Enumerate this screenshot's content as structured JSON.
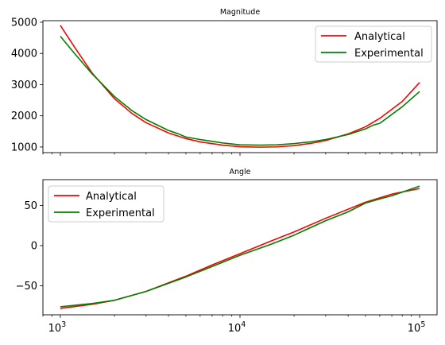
{
  "chart_data": [
    {
      "type": "line",
      "title": "Magnitude",
      "xscale": "log",
      "xlim": [
        800,
        125000
      ],
      "ylim": [
        820,
        5050
      ],
      "yticks": [
        1000,
        2000,
        3000,
        4000,
        5000
      ],
      "legend": {
        "position": "top-right"
      },
      "series": [
        {
          "name": "Analytical",
          "color": "#ff0000",
          "x": [
            1000,
            1200,
            1500,
            2000,
            2500,
            3000,
            4000,
            5000,
            6000,
            8000,
            10000,
            13000,
            16000,
            20000,
            25000,
            30000,
            40000,
            50000,
            60000,
            80000,
            100000
          ],
          "y": [
            4900,
            4200,
            3380,
            2550,
            2080,
            1780,
            1450,
            1270,
            1165,
            1060,
            1010,
            995,
            1005,
            1045,
            1120,
            1210,
            1420,
            1650,
            1920,
            2460,
            3070
          ]
        },
        {
          "name": "Experimental",
          "color": "#008000",
          "x": [
            1000,
            1200,
            1500,
            2000,
            2500,
            3000,
            4000,
            4500,
            5000,
            6000,
            8000,
            10000,
            13000,
            16000,
            20000,
            25000,
            30000,
            40000,
            50000,
            55000,
            60000,
            80000,
            100000
          ],
          "y": [
            4550,
            4000,
            3350,
            2620,
            2170,
            1880,
            1530,
            1430,
            1320,
            1240,
            1130,
            1070,
            1060,
            1070,
            1110,
            1170,
            1240,
            1400,
            1580,
            1700,
            1760,
            2290,
            2780
          ]
        }
      ]
    },
    {
      "type": "line",
      "title": "Angle",
      "xscale": "log",
      "xlim": [
        800,
        125000
      ],
      "ylim": [
        -86,
        82
      ],
      "xticks": [
        {
          "value": 1000,
          "base": "10",
          "exp": "3"
        },
        {
          "value": 10000,
          "base": "10",
          "exp": "4"
        },
        {
          "value": 100000,
          "base": "10",
          "exp": "5"
        }
      ],
      "yticks": [
        -50,
        0,
        50
      ],
      "legend": {
        "position": "top-left"
      },
      "series": [
        {
          "name": "Analytical",
          "color": "#ff0000",
          "x": [
            1000,
            1500,
            2000,
            3000,
            5000,
            7000,
            10000,
            15000,
            20000,
            30000,
            50000,
            70000,
            100000
          ],
          "y": [
            -78,
            -73,
            -68,
            -57,
            -38,
            -24,
            -10,
            6,
            17,
            34,
            54,
            64,
            71
          ]
        },
        {
          "name": "Experimental",
          "color": "#008000",
          "x": [
            1000,
            1500,
            2000,
            3000,
            5000,
            7000,
            10000,
            13000,
            15000,
            20000,
            30000,
            40000,
            50000,
            60000,
            70000,
            100000
          ],
          "y": [
            -76,
            -72,
            -68,
            -57,
            -39,
            -26,
            -12,
            -3,
            2,
            13,
            31,
            42,
            53,
            58,
            62,
            74
          ]
        }
      ]
    }
  ]
}
